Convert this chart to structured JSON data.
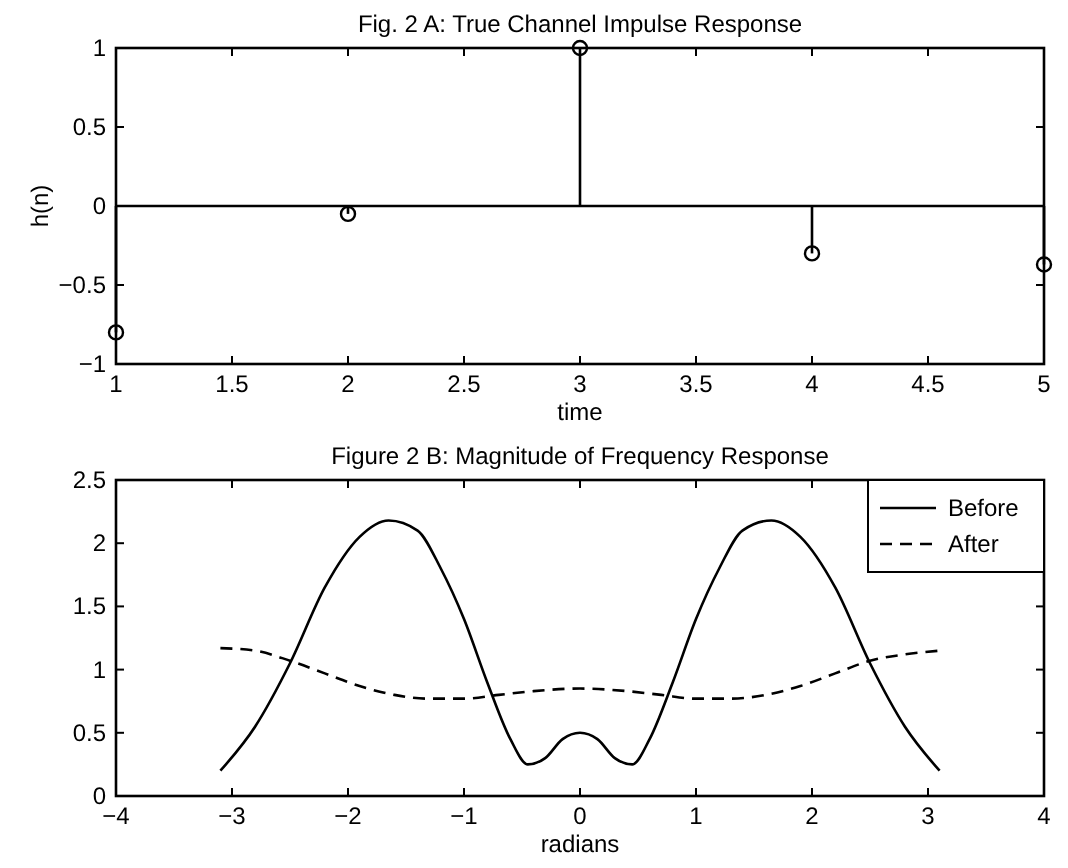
{
  "chart_data": [
    {
      "type": "lollipop",
      "title": "Fig. 2 A: True Channel Impulse Response",
      "xlabel": "time",
      "ylabel": "h(n)",
      "x": [
        1,
        2,
        3,
        4,
        5
      ],
      "values": [
        -0.8,
        -0.05,
        1,
        -0.3,
        -0.37
      ],
      "color": "#000000",
      "marker": "circle",
      "xlim": [
        1,
        5
      ],
      "xticks": [
        1,
        1.5,
        2,
        2.5,
        3,
        3.5,
        4,
        4.5,
        5
      ],
      "ylim": [
        -1,
        1
      ],
      "yticks": [
        -1,
        -0.5,
        0,
        0.5,
        1
      ],
      "ref_lines": [
        {
          "axis": "y",
          "value": 0,
          "label": null,
          "color": "#000000"
        }
      ],
      "grid": false
    },
    {
      "type": "line",
      "title": "Figure 2 B: Magnitude of Frequency Response",
      "xlabel": "radians",
      "legend": "top right",
      "xlim": [
        -4,
        4
      ],
      "xticks": [
        -4,
        -3,
        -2,
        -1,
        0,
        1,
        2,
        3,
        4
      ],
      "ylim": [
        0,
        2.5
      ],
      "yticks": [
        0,
        0.5,
        1,
        1.5,
        2,
        2.5
      ],
      "grid": false,
      "series": [
        {
          "name": "Before",
          "color": "#000000",
          "line_style": "solid",
          "x": [
            -3.1,
            -2.8,
            -2.5,
            -2.2,
            -1.9,
            -1.65,
            -1.4,
            -1.2,
            -1.0,
            -0.8,
            -0.6,
            -0.45,
            -0.3,
            -0.15,
            0,
            0.15,
            0.3,
            0.45,
            0.6,
            0.8,
            1.0,
            1.2,
            1.4,
            1.65,
            1.9,
            2.2,
            2.5,
            2.8,
            3.1
          ],
          "values": [
            0.2,
            0.55,
            1.05,
            1.65,
            2.05,
            2.18,
            2.1,
            1.8,
            1.4,
            0.9,
            0.45,
            0.25,
            0.3,
            0.45,
            0.5,
            0.45,
            0.3,
            0.25,
            0.45,
            0.9,
            1.4,
            1.8,
            2.1,
            2.18,
            2.05,
            1.65,
            1.05,
            0.55,
            0.2
          ]
        },
        {
          "name": "After",
          "color": "#000000",
          "line_style": "dashed",
          "x": [
            -3.1,
            -2.8,
            -2.5,
            -2.2,
            -1.9,
            -1.6,
            -1.3,
            -1.0,
            -0.7,
            -0.4,
            0,
            0.4,
            0.7,
            1.0,
            1.3,
            1.6,
            1.9,
            2.2,
            2.5,
            2.8,
            3.1
          ],
          "values": [
            1.17,
            1.15,
            1.07,
            0.97,
            0.87,
            0.8,
            0.77,
            0.77,
            0.8,
            0.83,
            0.85,
            0.83,
            0.8,
            0.77,
            0.77,
            0.8,
            0.87,
            0.97,
            1.07,
            1.12,
            1.15
          ]
        }
      ]
    }
  ]
}
